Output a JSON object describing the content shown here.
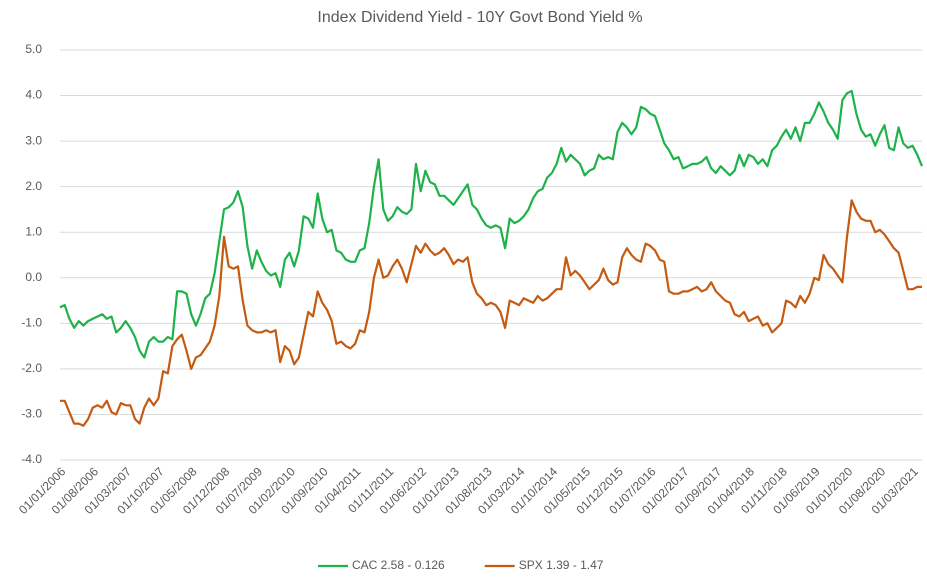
{
  "chart_data": {
    "type": "line",
    "title": "Index Dividend Yield - 10Y Govt Bond Yield %",
    "categories": [
      "01/01/2006",
      null,
      null,
      null,
      null,
      null,
      null,
      "01/08/2006",
      null,
      null,
      null,
      null,
      null,
      null,
      "01/03/2007",
      null,
      null,
      null,
      null,
      null,
      null,
      "01/10/2007",
      null,
      null,
      null,
      null,
      null,
      null,
      "01/05/2008",
      null,
      null,
      null,
      null,
      null,
      null,
      "01/12/2008",
      null,
      null,
      null,
      null,
      null,
      null,
      "01/07/2009",
      null,
      null,
      null,
      null,
      null,
      null,
      "01/02/2010",
      null,
      null,
      null,
      null,
      null,
      null,
      "01/09/2010",
      null,
      null,
      null,
      null,
      null,
      null,
      "01/04/2011",
      null,
      null,
      null,
      null,
      null,
      null,
      "01/11/2011",
      null,
      null,
      null,
      null,
      null,
      null,
      "01/06/2012",
      null,
      null,
      null,
      null,
      null,
      null,
      "01/01/2013",
      null,
      null,
      null,
      null,
      null,
      null,
      "01/08/2013",
      null,
      null,
      null,
      null,
      null,
      null,
      "01/03/2014",
      null,
      null,
      null,
      null,
      null,
      null,
      "01/10/2014",
      null,
      null,
      null,
      null,
      null,
      null,
      "01/05/2015",
      null,
      null,
      null,
      null,
      null,
      null,
      "01/12/2015",
      null,
      null,
      null,
      null,
      null,
      null,
      "01/07/2016",
      null,
      null,
      null,
      null,
      null,
      null,
      "01/02/2017",
      null,
      null,
      null,
      null,
      null,
      null,
      "01/09/2017",
      null,
      null,
      null,
      null,
      null,
      null,
      "01/04/2018",
      null,
      null,
      null,
      null,
      null,
      null,
      "01/11/2018",
      null,
      null,
      null,
      null,
      null,
      null,
      "01/06/2019",
      null,
      null,
      null,
      null,
      null,
      null,
      "01/01/2020",
      null,
      null,
      null,
      null,
      null,
      null,
      "01/08/2020",
      null,
      null,
      null,
      null,
      null,
      null,
      "01/03/2021",
      null,
      null
    ],
    "series": [
      {
        "name": "CAC 2.58 - 0.126",
        "color": "#1fb24a",
        "values": [
          -0.65,
          -0.6,
          -0.9,
          -1.1,
          -0.95,
          -1.05,
          -0.95,
          -0.9,
          -0.85,
          -0.8,
          -0.9,
          -0.85,
          -1.2,
          -1.1,
          -0.95,
          -1.1,
          -1.3,
          -1.6,
          -1.75,
          -1.4,
          -1.3,
          -1.4,
          -1.4,
          -1.3,
          -1.35,
          -0.3,
          -0.3,
          -0.35,
          -0.8,
          -1.05,
          -0.8,
          -0.45,
          -0.35,
          0.1,
          0.8,
          1.5,
          1.55,
          1.65,
          1.9,
          1.55,
          0.7,
          0.2,
          0.6,
          0.35,
          0.15,
          0.05,
          0.1,
          -0.2,
          0.4,
          0.55,
          0.25,
          0.6,
          1.35,
          1.3,
          1.1,
          1.85,
          1.3,
          1.0,
          1.05,
          0.6,
          0.55,
          0.4,
          0.35,
          0.35,
          0.6,
          0.65,
          1.2,
          2.0,
          2.6,
          1.5,
          1.25,
          1.35,
          1.55,
          1.45,
          1.4,
          1.5,
          2.5,
          1.9,
          2.35,
          2.1,
          2.05,
          1.8,
          1.8,
          1.7,
          1.6,
          1.75,
          1.9,
          2.05,
          1.6,
          1.5,
          1.3,
          1.15,
          1.1,
          1.15,
          1.1,
          0.65,
          1.3,
          1.2,
          1.25,
          1.35,
          1.5,
          1.75,
          1.9,
          1.95,
          2.2,
          2.3,
          2.5,
          2.85,
          2.55,
          2.7,
          2.6,
          2.5,
          2.25,
          2.35,
          2.4,
          2.7,
          2.6,
          2.65,
          2.6,
          3.2,
          3.4,
          3.3,
          3.15,
          3.3,
          3.75,
          3.7,
          3.6,
          3.55,
          3.25,
          2.95,
          2.8,
          2.6,
          2.65,
          2.4,
          2.45,
          2.5,
          2.5,
          2.55,
          2.65,
          2.4,
          2.3,
          2.45,
          2.35,
          2.25,
          2.35,
          2.7,
          2.45,
          2.7,
          2.65,
          2.5,
          2.6,
          2.45,
          2.8,
          2.9,
          3.1,
          3.25,
          3.05,
          3.3,
          3.0,
          3.4,
          3.4,
          3.6,
          3.85,
          3.65,
          3.4,
          3.25,
          3.05,
          3.9,
          4.05,
          4.1,
          3.6,
          3.25,
          3.1,
          3.15,
          2.9,
          3.15,
          3.35,
          2.85,
          2.8,
          3.3,
          2.95,
          2.85,
          2.9,
          2.7,
          2.45
        ]
      },
      {
        "name": "SPX 1.39 - 1.47",
        "color": "#c55a11",
        "values": [
          -2.7,
          -2.7,
          -2.95,
          -3.2,
          -3.2,
          -3.25,
          -3.1,
          -2.85,
          -2.8,
          -2.85,
          -2.7,
          -2.95,
          -3.0,
          -2.75,
          -2.8,
          -2.8,
          -3.1,
          -3.2,
          -2.85,
          -2.65,
          -2.8,
          -2.65,
          -2.05,
          -2.1,
          -1.5,
          -1.35,
          -1.25,
          -1.6,
          -2.0,
          -1.75,
          -1.7,
          -1.55,
          -1.4,
          -1.05,
          -0.4,
          0.9,
          0.25,
          0.2,
          0.25,
          -0.5,
          -1.05,
          -1.15,
          -1.2,
          -1.2,
          -1.15,
          -1.2,
          -1.15,
          -1.85,
          -1.5,
          -1.6,
          -1.9,
          -1.75,
          -1.25,
          -0.75,
          -0.85,
          -0.3,
          -0.55,
          -0.7,
          -0.95,
          -1.45,
          -1.4,
          -1.5,
          -1.55,
          -1.45,
          -1.15,
          -1.2,
          -0.75,
          0.0,
          0.4,
          0.0,
          0.05,
          0.25,
          0.4,
          0.2,
          -0.1,
          0.3,
          0.7,
          0.55,
          0.75,
          0.6,
          0.5,
          0.55,
          0.65,
          0.5,
          0.3,
          0.4,
          0.35,
          0.45,
          -0.1,
          -0.35,
          -0.45,
          -0.6,
          -0.55,
          -0.6,
          -0.75,
          -1.1,
          -0.5,
          -0.55,
          -0.6,
          -0.45,
          -0.5,
          -0.55,
          -0.4,
          -0.5,
          -0.45,
          -0.35,
          -0.25,
          -0.25,
          0.45,
          0.05,
          0.15,
          0.05,
          -0.1,
          -0.25,
          -0.15,
          -0.05,
          0.2,
          -0.05,
          -0.15,
          -0.1,
          0.45,
          0.65,
          0.5,
          0.4,
          0.35,
          0.75,
          0.7,
          0.6,
          0.4,
          0.35,
          -0.3,
          -0.35,
          -0.35,
          -0.3,
          -0.3,
          -0.25,
          -0.2,
          -0.3,
          -0.25,
          -0.1,
          -0.3,
          -0.4,
          -0.5,
          -0.55,
          -0.8,
          -0.85,
          -0.75,
          -0.95,
          -0.9,
          -0.85,
          -1.05,
          -1.0,
          -1.2,
          -1.1,
          -1.0,
          -0.5,
          -0.55,
          -0.65,
          -0.4,
          -0.55,
          -0.35,
          0.0,
          -0.05,
          0.5,
          0.3,
          0.2,
          0.05,
          -0.1,
          0.9,
          1.7,
          1.45,
          1.3,
          1.25,
          1.25,
          1.0,
          1.05,
          0.95,
          0.8,
          0.65,
          0.55,
          0.15,
          -0.25,
          -0.25,
          -0.2,
          -0.2
        ]
      }
    ],
    "ylim": [
      -4,
      5
    ],
    "yticks": [
      {
        "value": -4,
        "label": "-4.0"
      },
      {
        "value": -3,
        "label": "-3.0"
      },
      {
        "value": -2,
        "label": "-2.0"
      },
      {
        "value": -1,
        "label": "-1.0"
      },
      {
        "value": 0,
        "label": "0.0"
      },
      {
        "value": 1,
        "label": "1.0"
      },
      {
        "value": 2,
        "label": "2.0"
      },
      {
        "value": 3,
        "label": "3.0"
      },
      {
        "value": 4,
        "label": "4.0"
      },
      {
        "value": 5,
        "label": "5.0"
      }
    ],
    "grid": true,
    "legend": "bottom"
  }
}
